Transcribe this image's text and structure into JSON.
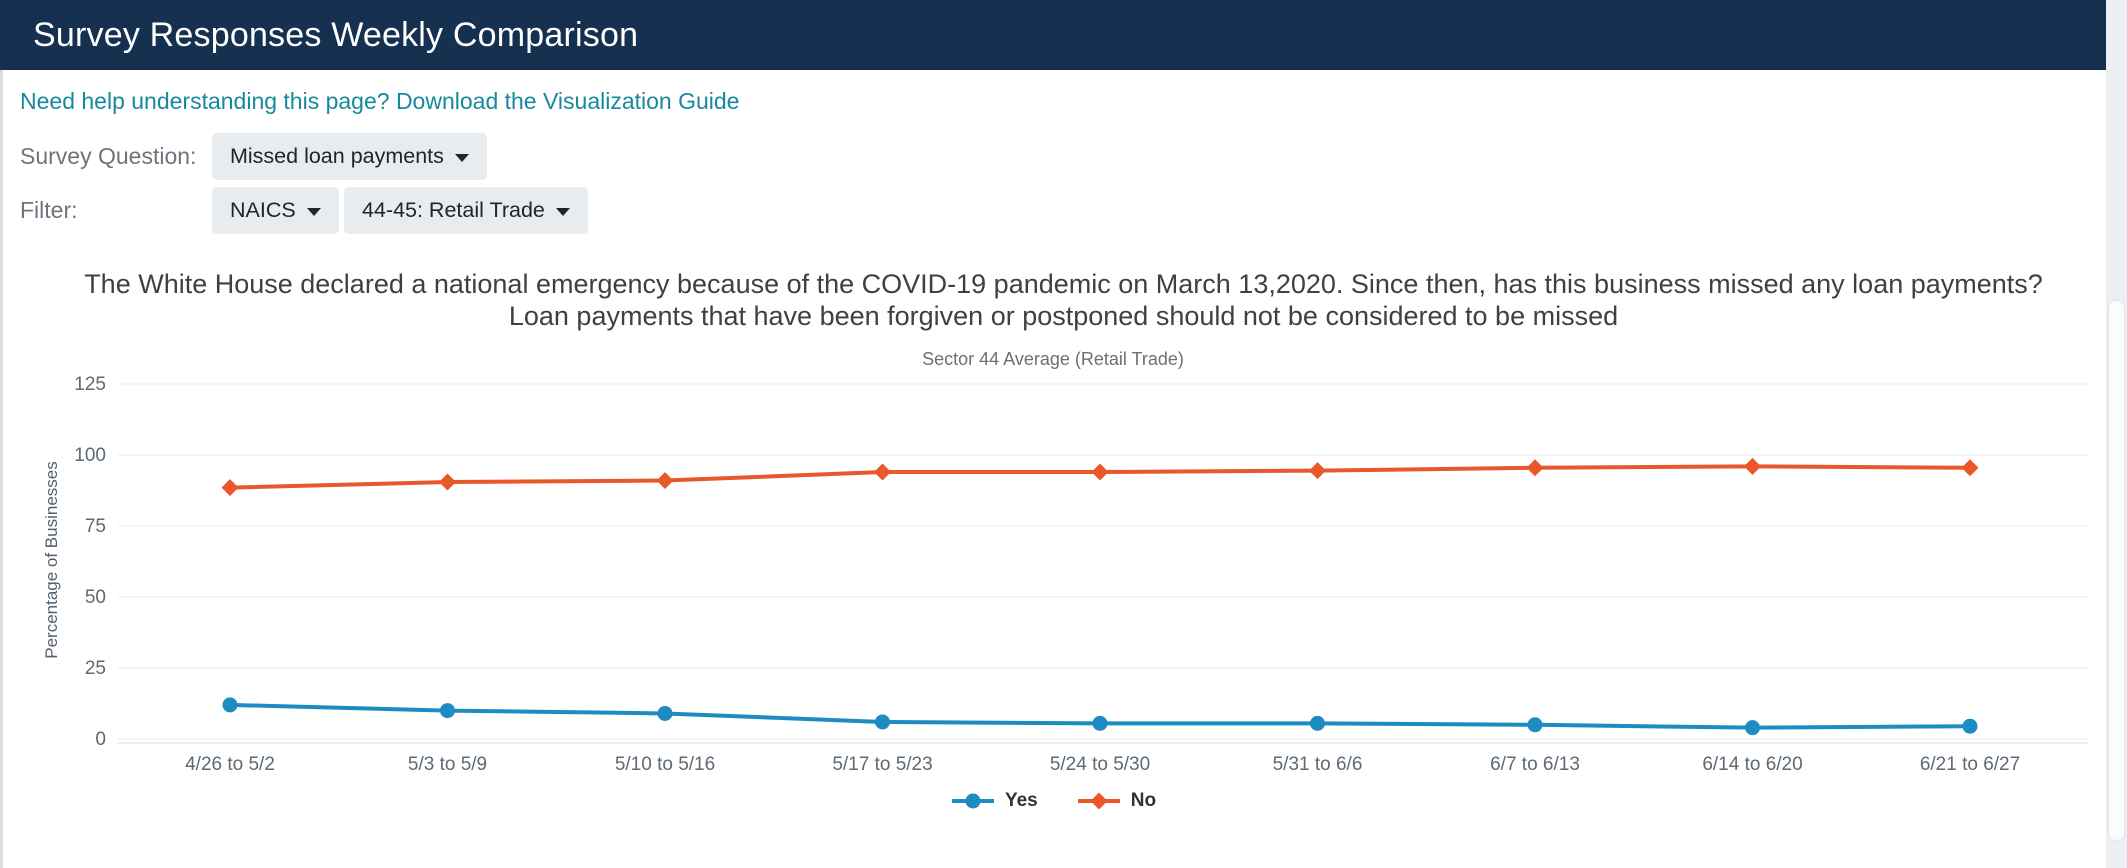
{
  "header": {
    "title": "Survey Responses Weekly Comparison"
  },
  "help_link": {
    "text": "Need help understanding this page? Download the Visualization Guide"
  },
  "controls": {
    "survey_question_label": "Survey Question:",
    "survey_question_value": "Missed loan payments",
    "filter_label": "Filter:",
    "filter_type_value": "NAICS",
    "filter_sector_value": "44-45: Retail Trade"
  },
  "chart_data": {
    "type": "line",
    "title": "The White House declared a national emergency because of the COVID-19 pandemic on March 13,2020. Since then, has this business missed any loan payments? Loan payments that have been forgiven or postponed should not be considered to be missed",
    "subtitle": "Sector 44 Average (Retail Trade)",
    "xlabel": "",
    "ylabel": "Percentage of Businesses",
    "ylim": [
      0,
      125
    ],
    "yticks": [
      0,
      25,
      50,
      75,
      100,
      125
    ],
    "grid": "horizontal",
    "legend_position": "bottom",
    "categories": [
      "4/26 to 5/2",
      "5/3 to 5/9",
      "5/10 to 5/16",
      "5/17 to 5/23",
      "5/24 to 5/30",
      "5/31 to 6/6",
      "6/7 to 6/13",
      "6/14 to 6/20",
      "6/21 to 6/27"
    ],
    "series": [
      {
        "name": "Yes",
        "color": "#1e8bc3",
        "marker": "circle",
        "values": [
          12,
          10,
          9,
          6,
          5.5,
          5.5,
          5,
          4,
          4.5
        ]
      },
      {
        "name": "No",
        "color": "#e9572b",
        "marker": "diamond",
        "values": [
          88.5,
          90.5,
          91,
          94,
          94,
          94.5,
          95.5,
          96,
          95.5
        ]
      }
    ]
  },
  "colors": {
    "header_bg": "#16304f",
    "link": "#17899c",
    "control_label": "#6c757d",
    "dropdown_bg": "#e9ecef",
    "gridline": "#e8e8e8",
    "axis_line": "#d6d9dd",
    "series_yes": "#1e8bc3",
    "series_no": "#e9572b"
  }
}
